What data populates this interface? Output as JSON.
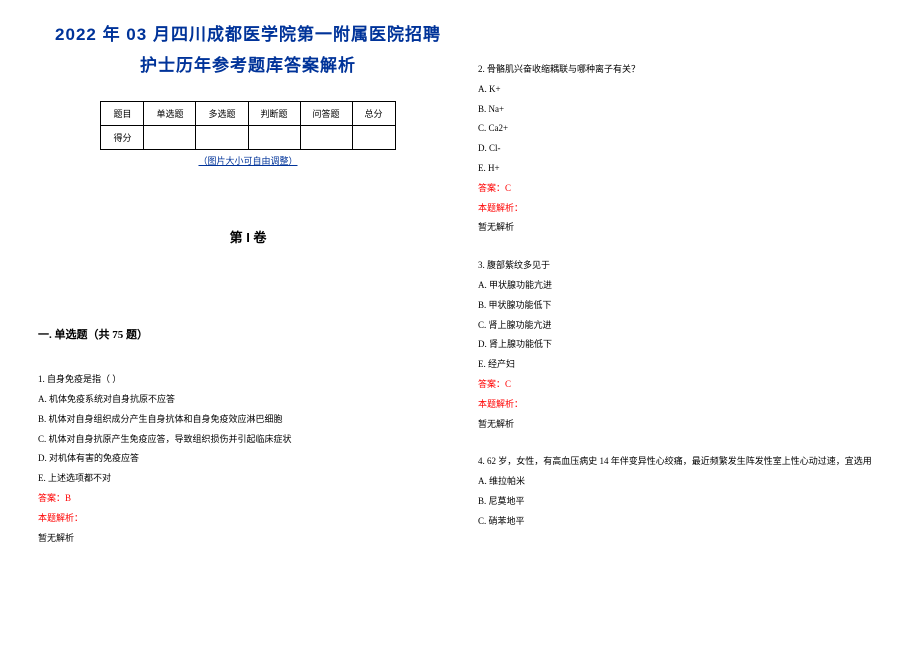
{
  "title_line1": "2022 年 03 月四川成都医学院第一附属医院招聘",
  "title_line2": "护士历年参考题库答案解析",
  "table": {
    "headers": [
      "题目",
      "单选题",
      "多选题",
      "判断题",
      "问答题",
      "总分"
    ],
    "row_label": "得分"
  },
  "img_caption": "（图片大小可自由调整）",
  "volume_title": "第 I 卷",
  "section_title": "一. 单选题（共 75 题）",
  "questions": [
    {
      "num": "1.",
      "stem": "自身免疫是指（  ）",
      "options": [
        "A. 机体免疫系统对自身抗原不应答",
        "B. 机体对自身组织成分产生自身抗体和自身免疫效应淋巴细胞",
        "C. 机体对自身抗原产生免疫应答，导致组织损伤并引起临床症状",
        "D. 对机体有害的免疫应答",
        "E. 上述选项都不对"
      ],
      "answer": "答案：B",
      "explain_label": "本题解析：",
      "explain_text": "暂无解析"
    },
    {
      "num": "2.",
      "stem": "骨骼肌兴奋收缩耦联与哪种离子有关？",
      "options": [
        "A. K+",
        "B. Na+",
        "C. Ca2+",
        "D. Cl-",
        "E. H+"
      ],
      "answer": "答案：C",
      "explain_label": "本题解析：",
      "explain_text": "暂无解析"
    },
    {
      "num": "3.",
      "stem": "腹部紫纹多见于",
      "options": [
        "A. 甲状腺功能亢进",
        "B. 甲状腺功能低下",
        "C. 肾上腺功能亢进",
        "D. 肾上腺功能低下",
        "E. 经产妇"
      ],
      "answer": "答案：C",
      "explain_label": "本题解析：",
      "explain_text": "暂无解析"
    },
    {
      "num": "4.",
      "stem": "62 岁，女性，有高血压病史 14 年伴变异性心绞痛，最近频繁发生阵发性室上性心动过速，宜选用",
      "options": [
        "A. 维拉帕米",
        "B. 尼莫地平",
        "C. 硝苯地平"
      ],
      "answer": "",
      "explain_label": "",
      "explain_text": ""
    }
  ]
}
